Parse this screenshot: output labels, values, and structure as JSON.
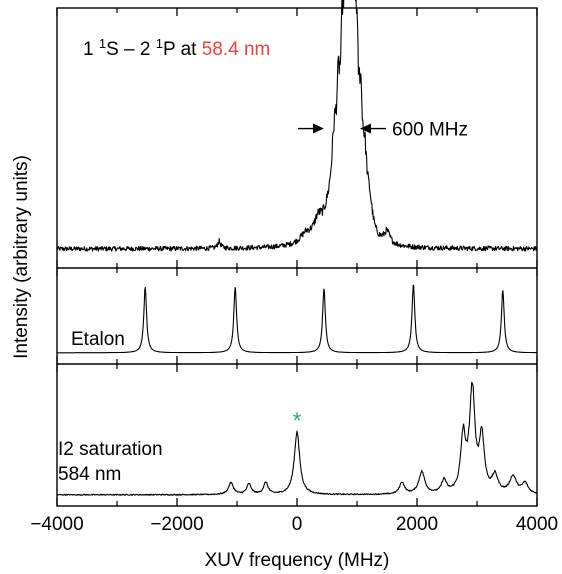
{
  "chart_data": {
    "type": "line",
    "xlabel": "XUV frequency (MHz)",
    "ylabel": "Intensity (arbitrary units)",
    "xlim": [
      -4000,
      4000
    ],
    "xticks": [
      -4000,
      -2000,
      0,
      2000,
      4000
    ],
    "xtick_labels": [
      "−4000",
      "−2000",
      "0",
      "2000",
      "4000"
    ],
    "grid": false,
    "panels": [
      {
        "name": "xuv",
        "label_parts": [
          {
            "text": "1 ",
            "style": "normal"
          },
          {
            "text": "1",
            "style": "sup"
          },
          {
            "text": "S – 2 ",
            "style": "normal"
          },
          {
            "text": "1",
            "style": "sup"
          },
          {
            "text": "P at ",
            "style": "normal"
          },
          {
            "text": "58.4 nm",
            "style": "accent"
          }
        ],
        "accent_color": "#e8413e",
        "annotation": {
          "text": "600 MHz",
          "x_left": 450,
          "x_right": 1050,
          "level": 0.54
        },
        "baseline": 0.03,
        "noise": 0.01,
        "peaks": [
          {
            "x": 550,
            "a": 0.12,
            "w": 140
          },
          {
            "x": 620,
            "a": 0.25,
            "w": 50
          },
          {
            "x": 690,
            "a": 0.38,
            "w": 40
          },
          {
            "x": 760,
            "a": 0.58,
            "w": 38
          },
          {
            "x": 820,
            "a": 0.78,
            "w": 35
          },
          {
            "x": 870,
            "a": 0.9,
            "w": 32
          },
          {
            "x": 930,
            "a": 0.82,
            "w": 32
          },
          {
            "x": 990,
            "a": 0.62,
            "w": 35
          },
          {
            "x": 1060,
            "a": 0.42,
            "w": 38
          },
          {
            "x": 1130,
            "a": 0.24,
            "w": 45
          },
          {
            "x": 1210,
            "a": 0.12,
            "w": 60
          },
          {
            "x": 1500,
            "a": 0.05,
            "w": 60
          },
          {
            "x": 350,
            "a": 0.07,
            "w": 80
          },
          {
            "x": 150,
            "a": 0.04,
            "w": 120
          },
          {
            "x": -1300,
            "a": 0.03,
            "w": 30
          }
        ]
      },
      {
        "name": "etalon",
        "label": "Etalon",
        "baseline": 0.04,
        "noise": 0.0,
        "peaks": [
          {
            "x": -2530,
            "a": 0.82,
            "w": 28
          },
          {
            "x": -1030,
            "a": 0.82,
            "w": 28
          },
          {
            "x": 450,
            "a": 0.8,
            "w": 28
          },
          {
            "x": 1940,
            "a": 0.86,
            "w": 28
          },
          {
            "x": 3430,
            "a": 0.78,
            "w": 28
          }
        ]
      },
      {
        "name": "i2",
        "label_lines": [
          "I2 saturation",
          "584 nm"
        ],
        "marker": {
          "text": "*",
          "x": 0,
          "color": "#2aa866"
        },
        "baseline": 0.04,
        "noise": 0.004,
        "peaks": [
          {
            "x": -1100,
            "a": 0.09,
            "w": 50
          },
          {
            "x": -800,
            "a": 0.08,
            "w": 45
          },
          {
            "x": -520,
            "a": 0.09,
            "w": 45
          },
          {
            "x": 0,
            "a": 0.48,
            "w": 55
          },
          {
            "x": 1750,
            "a": 0.09,
            "w": 50
          },
          {
            "x": 2080,
            "a": 0.17,
            "w": 60
          },
          {
            "x": 2450,
            "a": 0.1,
            "w": 50
          },
          {
            "x": 2770,
            "a": 0.42,
            "w": 50
          },
          {
            "x": 2920,
            "a": 0.78,
            "w": 55
          },
          {
            "x": 3080,
            "a": 0.42,
            "w": 50
          },
          {
            "x": 3300,
            "a": 0.13,
            "w": 60
          },
          {
            "x": 3600,
            "a": 0.13,
            "w": 70
          },
          {
            "x": 3800,
            "a": 0.08,
            "w": 60
          }
        ]
      }
    ]
  }
}
